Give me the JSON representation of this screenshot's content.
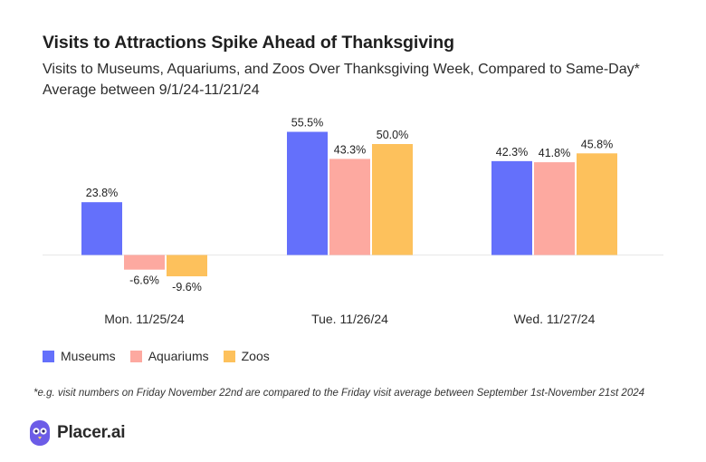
{
  "header": {
    "title": "Visits to Attractions Spike Ahead of Thanksgiving",
    "subtitle": "Visits to Museums, Aquariums, and Zoos Over Thanksgiving Week, Compared to Same-Day* Average between 9/1/24-11/21/24"
  },
  "chart_data": {
    "type": "bar",
    "title": "Visits to Attractions Spike Ahead of Thanksgiving",
    "subtitle": "Visits to Museums, Aquariums, and Zoos Over Thanksgiving Week, Compared to Same-Day* Average between 9/1/24-11/21/24",
    "categories": [
      "Mon. 11/25/24",
      "Tue. 11/26/24",
      "Wed. 11/27/24"
    ],
    "series": [
      {
        "name": "Museums",
        "color": "#6470fb",
        "values": [
          23.8,
          55.5,
          42.3
        ],
        "labels": [
          "23.8%",
          "55.5%",
          "42.3%"
        ]
      },
      {
        "name": "Aquariums",
        "color": "#fda9a0",
        "values": [
          -6.6,
          43.3,
          41.8
        ],
        "labels": [
          "-6.6%",
          "43.3%",
          "41.8%"
        ]
      },
      {
        "name": "Zoos",
        "color": "#fdc15c",
        "values": [
          -9.6,
          50.0,
          45.8
        ],
        "labels": [
          "-9.6%",
          "50.0%",
          "45.8%"
        ]
      }
    ],
    "unit": "%",
    "ylim": [
      -12,
      60
    ],
    "xlabel": "",
    "ylabel": "",
    "grid": false,
    "legend_position": "bottom-left"
  },
  "legend": [
    {
      "label": "Museums",
      "color": "#6470fb"
    },
    {
      "label": "Aquariums",
      "color": "#fda9a0"
    },
    {
      "label": "Zoos",
      "color": "#fdc15c"
    }
  ],
  "footnote": "*e.g. visit numbers on Friday November 22nd are compared to the Friday visit average between September 1st-November 21st 2024",
  "brand": {
    "name": "Placer.ai",
    "icon": "placer-owl-icon",
    "icon_color": "#6c5ce7"
  }
}
